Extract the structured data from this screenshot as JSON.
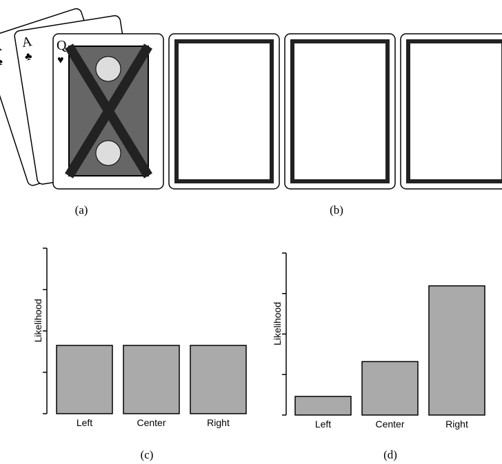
{
  "panel_labels": [
    "(a)",
    "(b)",
    "(c)",
    "(d)"
  ],
  "cards": [
    {
      "rank": "A",
      "suit": "♠"
    },
    {
      "rank": "A",
      "suit": "♣"
    },
    {
      "rank": "Q",
      "suit": "♥"
    }
  ],
  "chart_data": [
    {
      "type": "bar",
      "y_label": "Likelihood",
      "categories": [
        "Left",
        "Center",
        "Right"
      ],
      "values": [
        1.65,
        1.65,
        1.65
      ],
      "color": "#aaaaaa",
      "ylim": [
        0,
        4
      ],
      "yticks": [
        0,
        1,
        2,
        3,
        4
      ]
    },
    {
      "type": "bar",
      "y_label": "Likelihood",
      "categories": [
        "Left",
        "Center",
        "Right"
      ],
      "values": [
        0.46,
        1.32,
        3.19
      ],
      "color": "#aaaaaa",
      "ylim": [
        0,
        4
      ],
      "yticks": [
        0,
        1,
        2,
        3,
        4
      ]
    }
  ]
}
